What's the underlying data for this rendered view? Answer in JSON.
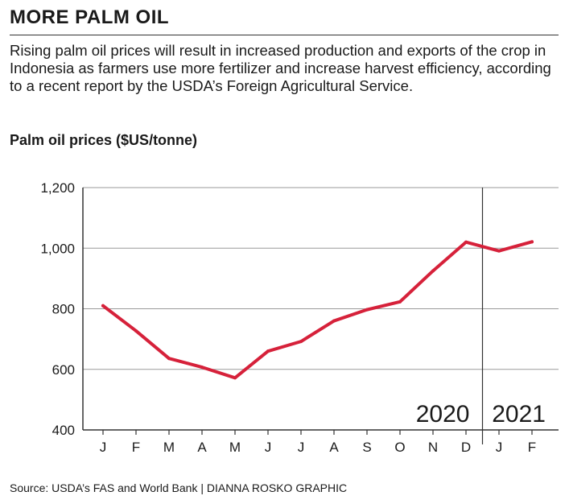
{
  "headline": "MORE PALM OIL",
  "dek": "Rising palm oil prices will result in increased production and exports of the crop in Indonesia as farmers use more fertilizer and increase harvest efficiency, according to a recent report by the USDA’s Foreign Agricultural Service.",
  "source": "Source: USDA’s FAS and World Bank  |  DIANNA ROSKO GRAPHIC",
  "colors": {
    "line": "#d6213a",
    "grid": "#9a9a9a",
    "axis": "#333333"
  },
  "chart_data": {
    "type": "line",
    "title": "Palm oil prices ($US/tonne)",
    "xlabel": "",
    "ylabel": "",
    "categories": [
      "J",
      "F",
      "M",
      "A",
      "M",
      "J",
      "J",
      "A",
      "S",
      "O",
      "N",
      "D",
      "J",
      "F"
    ],
    "years": [
      {
        "label": "2020",
        "start_index": 0,
        "end_index": 11
      },
      {
        "label": "2021",
        "start_index": 12,
        "end_index": 13
      }
    ],
    "ylim": [
      400,
      1200
    ],
    "yticks": [
      400,
      600,
      800,
      1000,
      1200
    ],
    "ytick_labels": [
      "400",
      "600",
      "800",
      "1,000",
      "1,200"
    ],
    "grid": true,
    "series": [
      {
        "values": [
          810,
          727,
          636,
          607,
          572,
          660,
          692,
          760,
          797,
          823,
          925,
          1020,
          991,
          1021
        ]
      }
    ]
  }
}
